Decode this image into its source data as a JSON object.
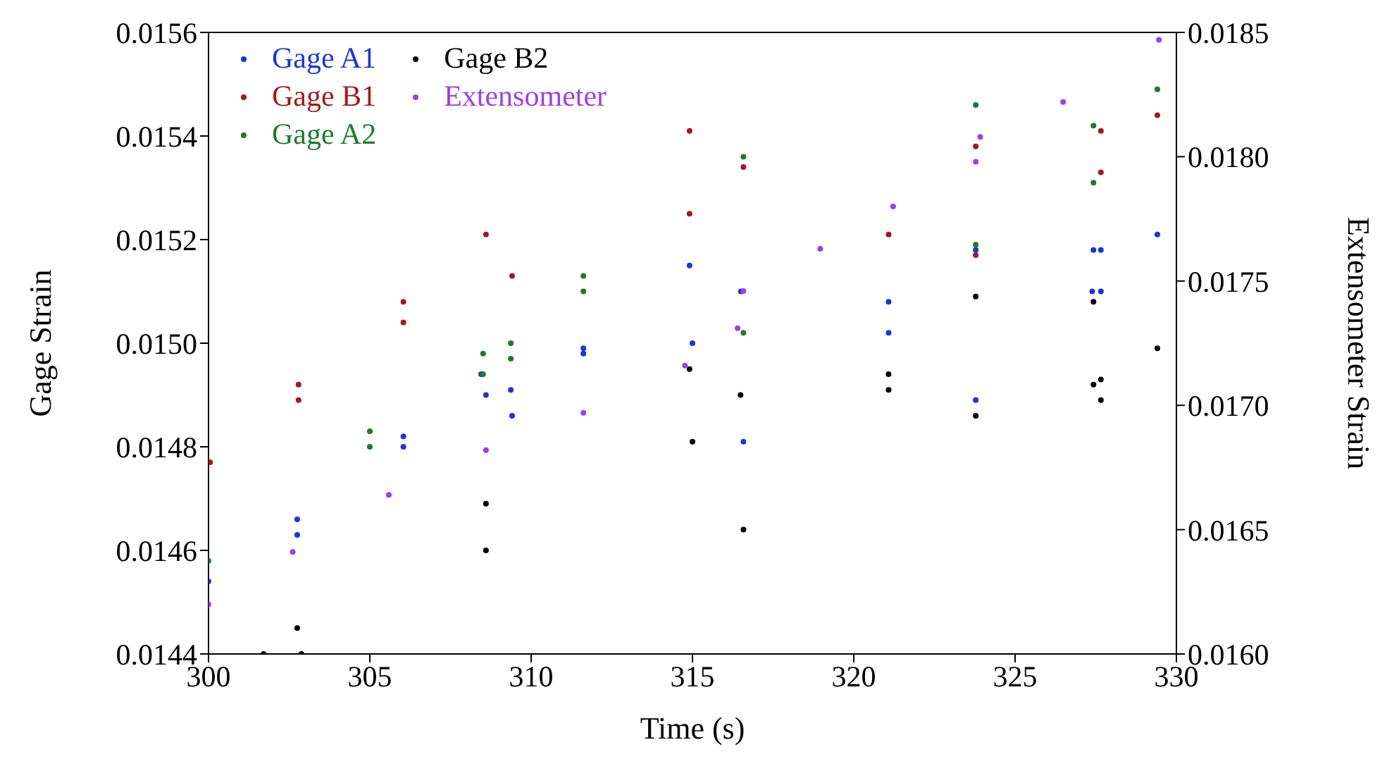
{
  "chart_data": {
    "type": "scatter",
    "xlabel": "Time (s)",
    "ylabel": "Gage Strain",
    "y2label": "Extensometer Strain",
    "xlim": [
      300,
      330
    ],
    "xticks": [
      300,
      305,
      310,
      315,
      320,
      325,
      330
    ],
    "ylim": [
      0.0144,
      0.0156
    ],
    "yticks": [
      0.0144,
      0.0146,
      0.0148,
      {
        "value": 0.015,
        "label": "0.0150"
      },
      0.0152,
      0.0154,
      0.0156
    ],
    "y2lim": [
      0.016,
      0.0185
    ],
    "y2ticks": [
      {
        "value": 0.016,
        "label": "0.0160"
      },
      0.0165,
      {
        "value": 0.017,
        "label": "0.0170"
      },
      0.0175,
      {
        "value": 0.018,
        "label": "0.0180"
      },
      0.0185
    ],
    "legend": "top left",
    "marker": "circle",
    "series": [
      {
        "name": "Gage A1",
        "color": "#1c35d8",
        "x": [
          300,
          302.75,
          302.75,
          306.04,
          306.04,
          308.45,
          308.6,
          309.37,
          309.41,
          311.62,
          311.62,
          314.91,
          315,
          316.5,
          316.58,
          321.08,
          321.08,
          323.78,
          323.78,
          327.39,
          327.43,
          327.66,
          327.66,
          329.41
        ],
        "values": [
          0.01454,
          0.01466,
          0.01463,
          0.01482,
          0.0148,
          0.01494,
          0.0149,
          0.01491,
          0.01486,
          0.01498,
          0.01499,
          0.01515,
          0.015,
          0.0151,
          0.01481,
          0.01508,
          0.01502,
          0.01518,
          0.01489,
          0.0151,
          0.01518,
          0.01518,
          0.0151,
          0.01521
        ]
      },
      {
        "name": "Gage B1",
        "color": "#a01c1c",
        "x": [
          300.05,
          302.79,
          302.79,
          306.04,
          306.04,
          308.6,
          309.41,
          314.91,
          314.91,
          316.58,
          321.08,
          323.78,
          323.78,
          327.66,
          327.66,
          329.41
        ],
        "values": [
          0.01477,
          0.01489,
          0.01492,
          0.01508,
          0.01504,
          0.01521,
          0.01513,
          0.01541,
          0.01525,
          0.01534,
          0.01521,
          0.01538,
          0.01517,
          0.01541,
          0.01533,
          0.01544
        ]
      },
      {
        "name": "Gage A2",
        "color": "#1e7b2e",
        "x": [
          300,
          305,
          305,
          308.51,
          308.51,
          309.37,
          309.37,
          311.62,
          311.62,
          316.58,
          316.58,
          323.78,
          323.78,
          327.43,
          327.43,
          329.41
        ],
        "values": [
          0.01458,
          0.01483,
          0.0148,
          0.01498,
          0.01494,
          0.01497,
          0.015,
          0.01513,
          0.0151,
          0.01536,
          0.01502,
          0.01546,
          0.01519,
          0.01542,
          0.01531,
          0.01549
        ]
      },
      {
        "name": "Gage B2",
        "color": "#000000",
        "x": [
          301.71,
          302.75,
          302.88,
          308.6,
          308.6,
          314.91,
          315,
          316.49,
          316.58,
          321.08,
          321.08,
          323.78,
          323.78,
          327.43,
          327.43,
          327.66,
          327.66,
          329.41
        ],
        "values": [
          0.0144,
          0.01445,
          0.0144,
          0.01469,
          0.0146,
          0.01495,
          0.01481,
          0.0149,
          0.01464,
          0.01491,
          0.01494,
          0.01509,
          0.01486,
          0.01508,
          0.01492,
          0.01493,
          0.01489,
          0.01499
        ]
      },
      {
        "name": "Extensometer",
        "color": "#a040e0",
        "axis": "y2",
        "x": [
          300,
          302.61,
          305.59,
          308.6,
          311.62,
          314.77,
          316.4,
          316.58,
          318.96,
          321.22,
          323.78,
          323.92,
          326.49,
          329.46
        ],
        "values": [
          0.0162,
          0.01641,
          0.01664,
          0.01682,
          0.01697,
          0.01716,
          0.01731,
          0.01746,
          0.01763,
          0.0178,
          0.01798,
          0.01808,
          0.01822,
          0.01847
        ]
      }
    ]
  }
}
